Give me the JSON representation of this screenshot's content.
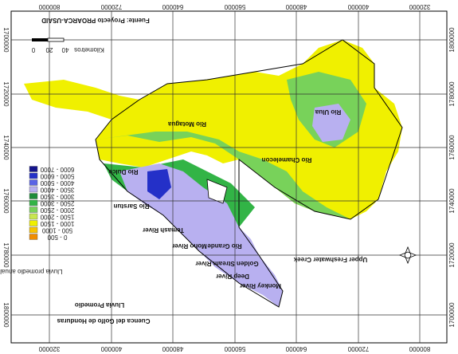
{
  "header": {
    "source": "Fuente: Proyecto PROARCA-USAID",
    "title": "Cuenca del Golfo de Honduras",
    "subtitle": "Lluvia Promedio"
  },
  "scale": {
    "ticks": [
      "0",
      "20",
      "40"
    ],
    "unit": "Kilometros"
  },
  "legend": {
    "title": "Lluvia promedio anual en mm",
    "items": [
      {
        "label": "6000 - 7000",
        "color": "#14148c"
      },
      {
        "label": "5000 - 6000",
        "color": "#2430c8"
      },
      {
        "label": "4000 - 5000",
        "color": "#5a64e6"
      },
      {
        "label": "3500 - 4000",
        "color": "#b8b0f0"
      },
      {
        "label": "3000 - 3500",
        "color": "#1e8c3a"
      },
      {
        "label": "2500 - 3000",
        "color": "#32b446"
      },
      {
        "label": "2000 - 2500",
        "color": "#78d25a"
      },
      {
        "label": "1500 - 2000",
        "color": "#c8e650"
      },
      {
        "label": "1000 - 1500",
        "color": "#f0f000"
      },
      {
        "label": "500 - 1000",
        "color": "#f8c400"
      },
      {
        "label": "0 - 500",
        "color": "#f08c00"
      }
    ]
  },
  "map_labels": [
    "Rio Ulua",
    "Rio Motagua",
    "Rio Chamelecon",
    "Rio Dulce",
    "Rio Sarstun",
    "Temash River",
    "Moho River",
    "Rio Grande",
    "Golden Stream River",
    "Upper Freshwater Creek",
    "Deep River",
    "Monkey River"
  ],
  "axes": {
    "top": [
      "800000",
      "720000",
      "640000",
      "560000",
      "480000",
      "400000",
      "320000"
    ],
    "bottom": [
      "320000",
      "400000",
      "480000",
      "560000",
      "640000",
      "720000",
      "800000"
    ],
    "left": [
      "1700000",
      "1720000",
      "1740000",
      "1760000",
      "1780000",
      "1800000"
    ],
    "right": [
      "1800000",
      "1780000",
      "1760000",
      "1740000",
      "1720000",
      "1700000"
    ]
  }
}
